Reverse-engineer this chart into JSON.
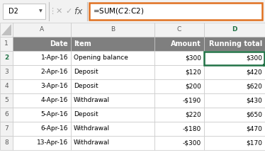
{
  "name_box": "D2",
  "formula_bar_text": "=SUM($C$2:C2)",
  "col_headers": [
    "A",
    "B",
    "C",
    "D"
  ],
  "header_row": [
    "Date",
    "Item",
    "Amount",
    "Running total"
  ],
  "rows": [
    [
      "1-Apr-16",
      "Opening balance",
      "$300",
      "$300"
    ],
    [
      "2-Apr-16",
      "Deposit",
      "$120",
      "$420"
    ],
    [
      "3-Apr-16",
      "Deposit",
      "$200",
      "$620"
    ],
    [
      "4-Apr-16",
      "Withdrawal",
      "-$190",
      "$430"
    ],
    [
      "5-Apr-16",
      "Deposit",
      "$220",
      "$650"
    ],
    [
      "6-Apr-16",
      "Withdrawal",
      "-$180",
      "$470"
    ],
    [
      "13-Apr-16",
      "Withdrawal",
      "-$300",
      "$170"
    ]
  ],
  "toolbar_bg": "#f2f2f2",
  "header_fill": "#7f7f7f",
  "header_text_color": "#ffffff",
  "row_header_fill": "#f2f2f2",
  "row_header_text_color": "#595959",
  "selected_row_header_text_color": "#217346",
  "col_header_fill": "#f2f2f2",
  "col_header_text_color": "#595959",
  "selected_col_header_text_color": "#217346",
  "active_cell_border": "#217346",
  "formula_box_border": "#e07020",
  "grid_color": "#c8c8c8",
  "cell_bg": "#ffffff",
  "cell_text_color": "#000000",
  "arrow_color": "#e07020",
  "toolbar_icon_color": "#b0b0b0",
  "name_box_border": "#c8c8c8",
  "col_a_align": "right",
  "col_b_align": "left",
  "col_c_align": "right",
  "col_d_align": "right",
  "selected_row": 1,
  "selected_col": 3,
  "font_size": 6.5,
  "header_font_size": 7.0
}
